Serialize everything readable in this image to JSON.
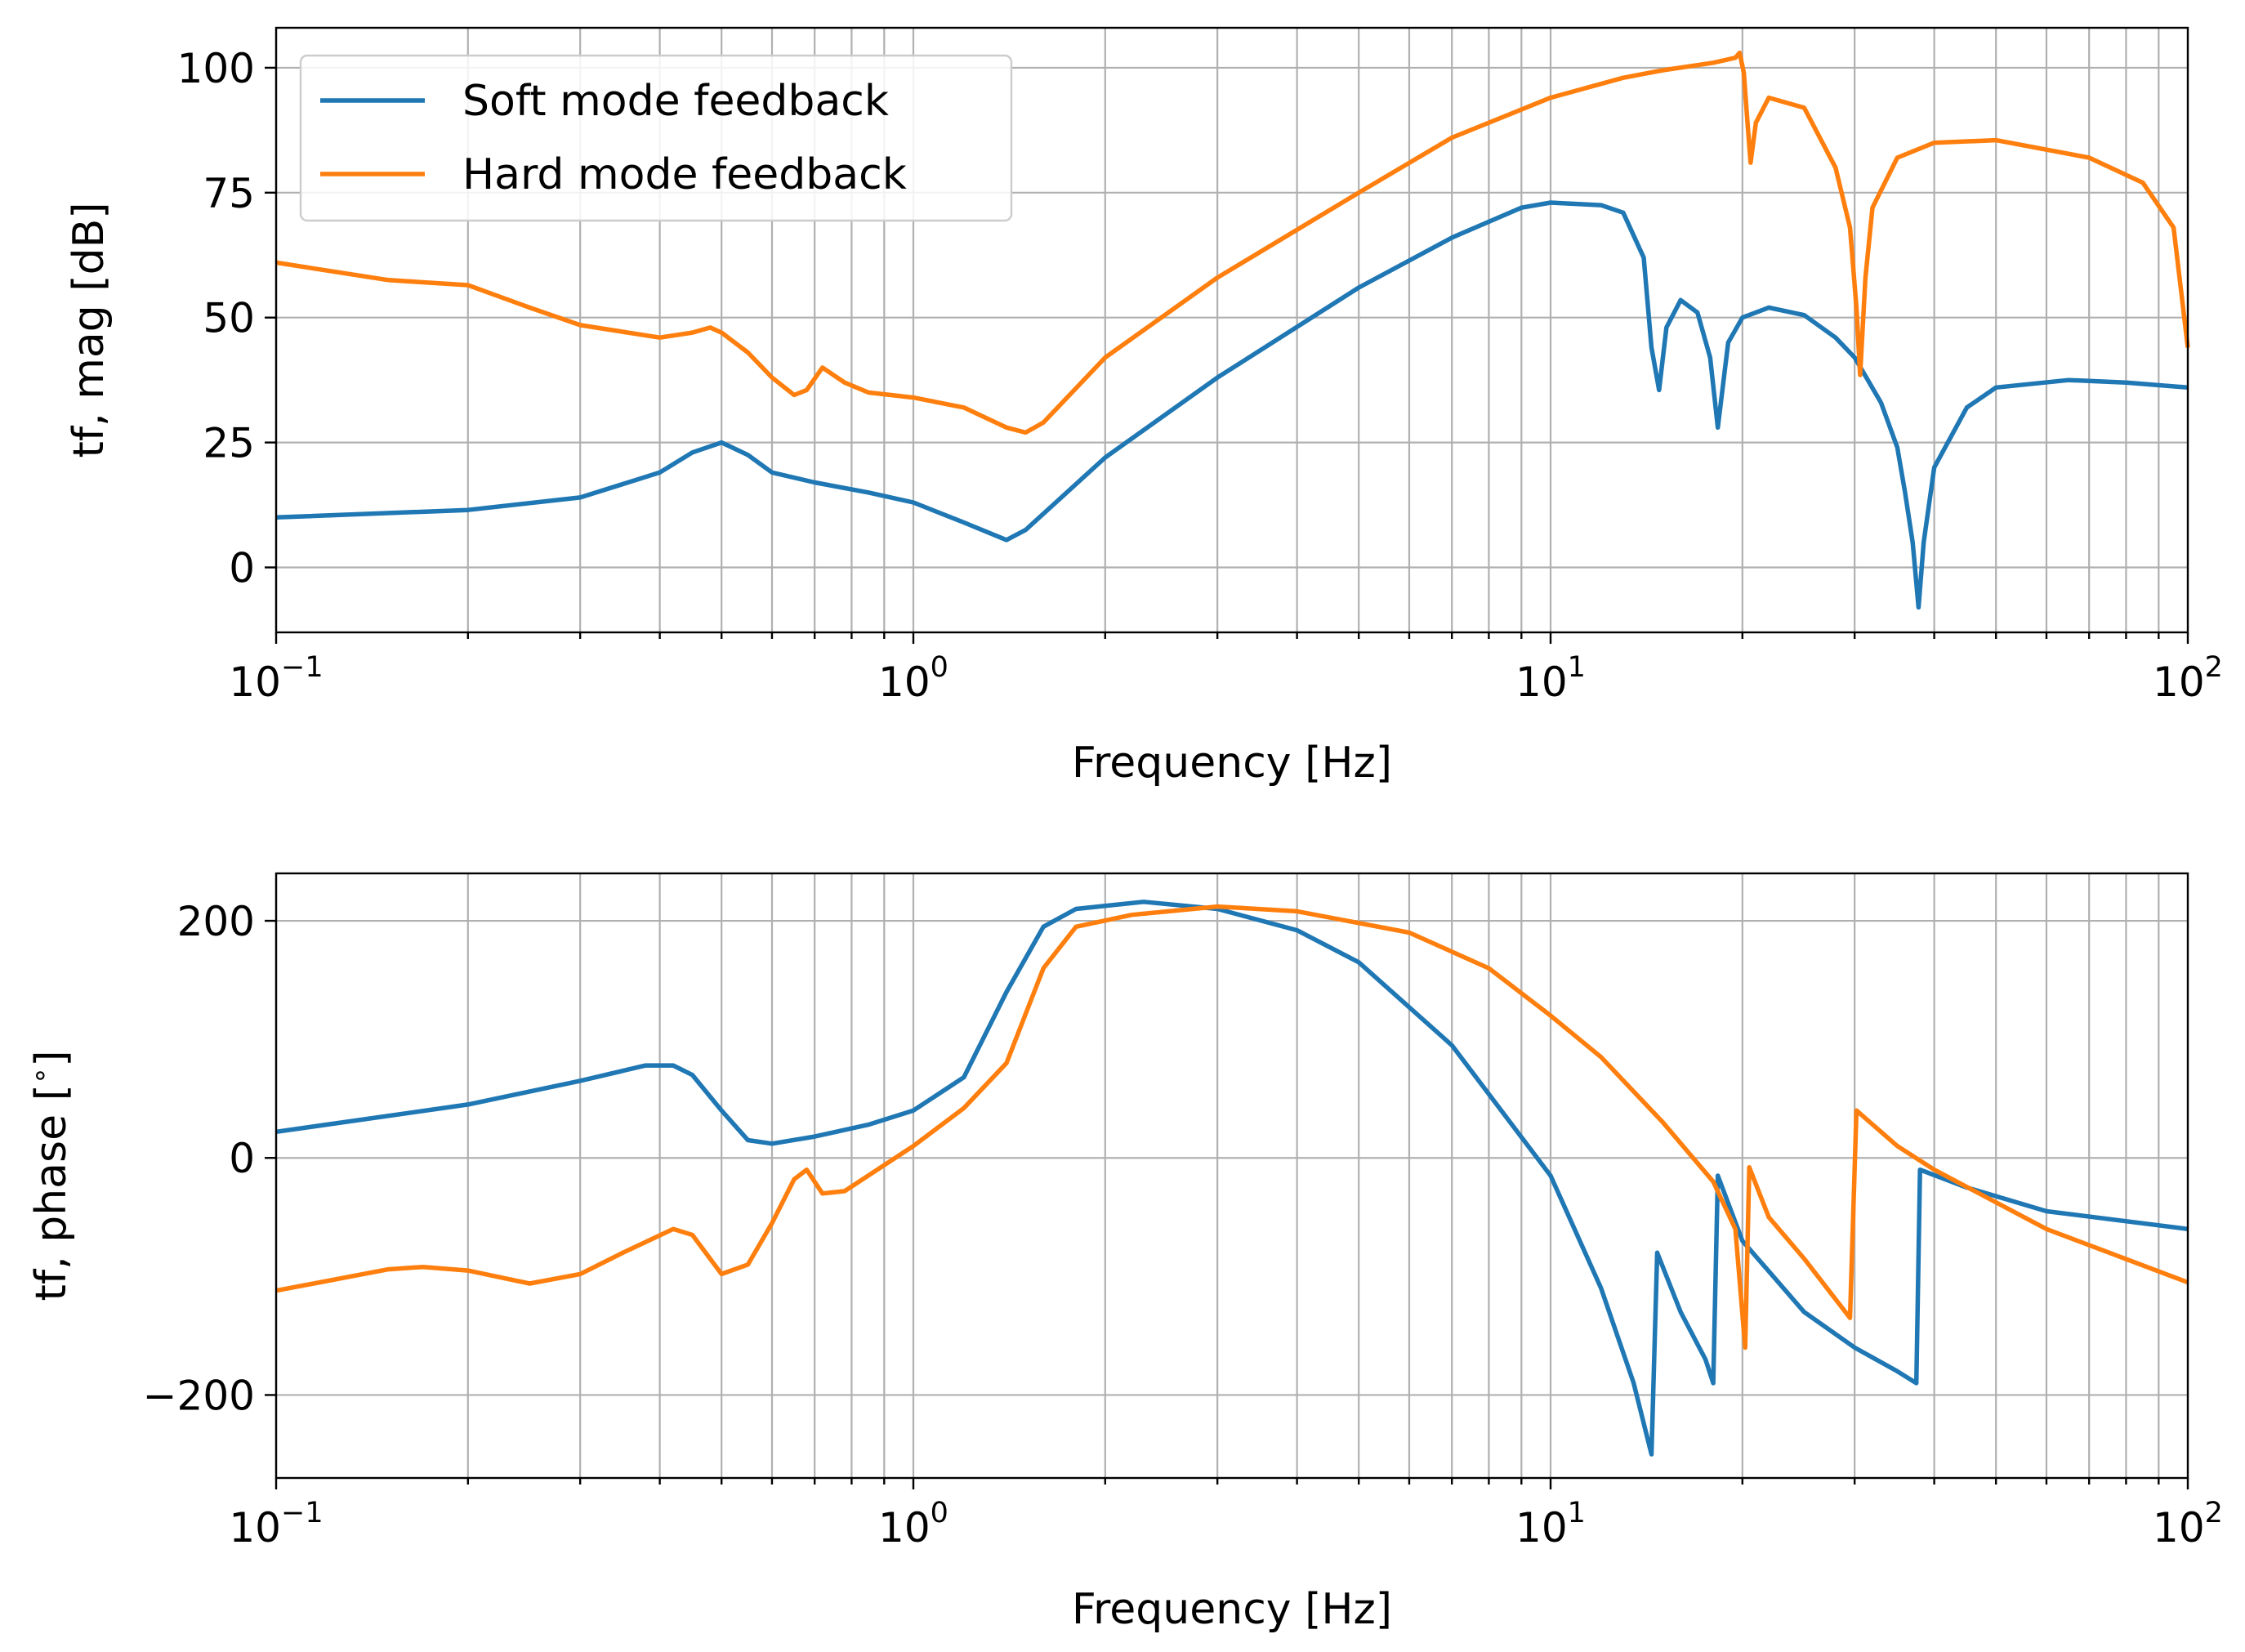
{
  "chart_data": [
    {
      "type": "line",
      "xscale": "log",
      "xlim": [
        0.1,
        100
      ],
      "ylim": [
        -13,
        108
      ],
      "xlabel": "Frequency [Hz]",
      "ylabel": "tf, mag [dB]",
      "grid": true,
      "legend_position": "upper-left",
      "x_ticks": [
        {
          "value": 0.1,
          "base": "10",
          "exp": "−1"
        },
        {
          "value": 1,
          "base": "10",
          "exp": "0"
        },
        {
          "value": 10,
          "base": "10",
          "exp": "1"
        },
        {
          "value": 100,
          "base": "10",
          "exp": "2"
        }
      ],
      "y_ticks": [
        {
          "value": 100,
          "label": "100"
        },
        {
          "value": 75,
          "label": "75"
        },
        {
          "value": 50,
          "label": "50"
        },
        {
          "value": 25,
          "label": "25"
        },
        {
          "value": 0,
          "label": "0"
        }
      ],
      "series": [
        {
          "name": "Soft mode feedback",
          "color": "#1f77b4",
          "points": [
            [
              0.1,
              10
            ],
            [
              0.2,
              11.5
            ],
            [
              0.3,
              14
            ],
            [
              0.4,
              19
            ],
            [
              0.45,
              23
            ],
            [
              0.5,
              25
            ],
            [
              0.55,
              22.5
            ],
            [
              0.6,
              19
            ],
            [
              0.7,
              17
            ],
            [
              0.85,
              15
            ],
            [
              1,
              13
            ],
            [
              1.2,
              9
            ],
            [
              1.4,
              5.5
            ],
            [
              1.5,
              7.5
            ],
            [
              2,
              22
            ],
            [
              3,
              38
            ],
            [
              5,
              56
            ],
            [
              7,
              66
            ],
            [
              9,
              72
            ],
            [
              10,
              73
            ],
            [
              12,
              72.5
            ],
            [
              13,
              71
            ],
            [
              14,
              62
            ],
            [
              14.4,
              44
            ],
            [
              14.8,
              35.5
            ],
            [
              15.2,
              48
            ],
            [
              16,
              53.5
            ],
            [
              17,
              51
            ],
            [
              17.8,
              42
            ],
            [
              18.3,
              28
            ],
            [
              19,
              45
            ],
            [
              20,
              50
            ],
            [
              22,
              52
            ],
            [
              25,
              50.5
            ],
            [
              28,
              46
            ],
            [
              30,
              42
            ],
            [
              33,
              33
            ],
            [
              35,
              24
            ],
            [
              36,
              15
            ],
            [
              37,
              5
            ],
            [
              37.8,
              -8
            ],
            [
              38.5,
              5
            ],
            [
              40,
              20
            ],
            [
              45,
              32
            ],
            [
              50,
              36
            ],
            [
              65,
              37.5
            ],
            [
              80,
              37
            ],
            [
              100,
              36
            ]
          ]
        },
        {
          "name": "Hard mode feedback",
          "color": "#ff7f0e",
          "points": [
            [
              0.1,
              61
            ],
            [
              0.15,
              57.5
            ],
            [
              0.2,
              56.5
            ],
            [
              0.25,
              52
            ],
            [
              0.3,
              48.5
            ],
            [
              0.4,
              46
            ],
            [
              0.45,
              47
            ],
            [
              0.48,
              48
            ],
            [
              0.5,
              47
            ],
            [
              0.55,
              43
            ],
            [
              0.6,
              38
            ],
            [
              0.65,
              34.5
            ],
            [
              0.68,
              35.5
            ],
            [
              0.72,
              40
            ],
            [
              0.78,
              37
            ],
            [
              0.85,
              35
            ],
            [
              1,
              34
            ],
            [
              1.2,
              32
            ],
            [
              1.4,
              28
            ],
            [
              1.5,
              27
            ],
            [
              1.6,
              29
            ],
            [
              2,
              42
            ],
            [
              3,
              58
            ],
            [
              5,
              75
            ],
            [
              7,
              86
            ],
            [
              10,
              94
            ],
            [
              13,
              98
            ],
            [
              15,
              99.5
            ],
            [
              18,
              101
            ],
            [
              19.5,
              102
            ],
            [
              19.8,
              103
            ],
            [
              20.1,
              99
            ],
            [
              20.4,
              88
            ],
            [
              20.6,
              81
            ],
            [
              21,
              89
            ],
            [
              22,
              94
            ],
            [
              25,
              92
            ],
            [
              28,
              80
            ],
            [
              29.5,
              68
            ],
            [
              30.2,
              52
            ],
            [
              30.6,
              38.5
            ],
            [
              31.2,
              58
            ],
            [
              32,
              72
            ],
            [
              35,
              82
            ],
            [
              40,
              85
            ],
            [
              50,
              85.5
            ],
            [
              70,
              82
            ],
            [
              85,
              77
            ],
            [
              95,
              68
            ],
            [
              100,
              44
            ]
          ]
        }
      ]
    },
    {
      "type": "line",
      "xscale": "log",
      "xlim": [
        0.1,
        100
      ],
      "ylim": [
        -270,
        240
      ],
      "xlabel": "Frequency [Hz]",
      "ylabel": "tf, phase [$^\\circ$]",
      "ylabel_prefix": "tf, phase [",
      "ylabel_degree": "∘",
      "ylabel_suffix": "]",
      "grid": true,
      "x_ticks": [
        {
          "value": 0.1,
          "base": "10",
          "exp": "−1"
        },
        {
          "value": 1,
          "base": "10",
          "exp": "0"
        },
        {
          "value": 10,
          "base": "10",
          "exp": "1"
        },
        {
          "value": 100,
          "base": "10",
          "exp": "2"
        }
      ],
      "y_ticks": [
        {
          "value": 200,
          "label": "200"
        },
        {
          "value": 0,
          "label": "0"
        },
        {
          "value": -200,
          "label": "−200"
        }
      ],
      "series": [
        {
          "name": "Soft mode feedback",
          "color": "#1f77b4",
          "points": [
            [
              0.1,
              22
            ],
            [
              0.2,
              45
            ],
            [
              0.3,
              65
            ],
            [
              0.38,
              78
            ],
            [
              0.42,
              78
            ],
            [
              0.45,
              70
            ],
            [
              0.5,
              40
            ],
            [
              0.55,
              15
            ],
            [
              0.6,
              12
            ],
            [
              0.7,
              18
            ],
            [
              0.85,
              28
            ],
            [
              1,
              40
            ],
            [
              1.2,
              68
            ],
            [
              1.4,
              140
            ],
            [
              1.6,
              195
            ],
            [
              1.8,
              210
            ],
            [
              2.3,
              216
            ],
            [
              3,
              210
            ],
            [
              4,
              192
            ],
            [
              5,
              165
            ],
            [
              7,
              95
            ],
            [
              10,
              -15
            ],
            [
              12,
              -110
            ],
            [
              13.5,
              -190
            ],
            [
              14.4,
              -250
            ],
            [
              14.7,
              -80
            ],
            [
              16,
              -130
            ],
            [
              17.5,
              -170
            ],
            [
              18,
              -190
            ],
            [
              18.3,
              -15
            ],
            [
              20,
              -70
            ],
            [
              25,
              -130
            ],
            [
              30,
              -160
            ],
            [
              35,
              -180
            ],
            [
              37.5,
              -190
            ],
            [
              38,
              -10
            ],
            [
              45,
              -25
            ],
            [
              60,
              -45
            ],
            [
              100,
              -60
            ]
          ]
        },
        {
          "name": "Hard mode feedback",
          "color": "#ff7f0e",
          "points": [
            [
              0.1,
              -112
            ],
            [
              0.15,
              -94
            ],
            [
              0.17,
              -92
            ],
            [
              0.2,
              -95
            ],
            [
              0.25,
              -106
            ],
            [
              0.3,
              -98
            ],
            [
              0.35,
              -80
            ],
            [
              0.42,
              -60
            ],
            [
              0.45,
              -65
            ],
            [
              0.5,
              -98
            ],
            [
              0.55,
              -90
            ],
            [
              0.6,
              -55
            ],
            [
              0.65,
              -18
            ],
            [
              0.68,
              -10
            ],
            [
              0.72,
              -30
            ],
            [
              0.78,
              -28
            ],
            [
              1,
              10
            ],
            [
              1.2,
              42
            ],
            [
              1.4,
              80
            ],
            [
              1.6,
              160
            ],
            [
              1.8,
              195
            ],
            [
              2.2,
              205
            ],
            [
              3,
              212
            ],
            [
              4,
              208
            ],
            [
              6,
              190
            ],
            [
              8,
              160
            ],
            [
              10,
              120
            ],
            [
              12,
              85
            ],
            [
              15,
              30
            ],
            [
              18,
              -20
            ],
            [
              19.5,
              -60
            ],
            [
              20.2,
              -160
            ],
            [
              20.5,
              -8
            ],
            [
              22,
              -50
            ],
            [
              25,
              -85
            ],
            [
              29.5,
              -135
            ],
            [
              30.2,
              40
            ],
            [
              35,
              10
            ],
            [
              40,
              -10
            ],
            [
              60,
              -60
            ],
            [
              100,
              -105
            ]
          ]
        }
      ]
    }
  ]
}
